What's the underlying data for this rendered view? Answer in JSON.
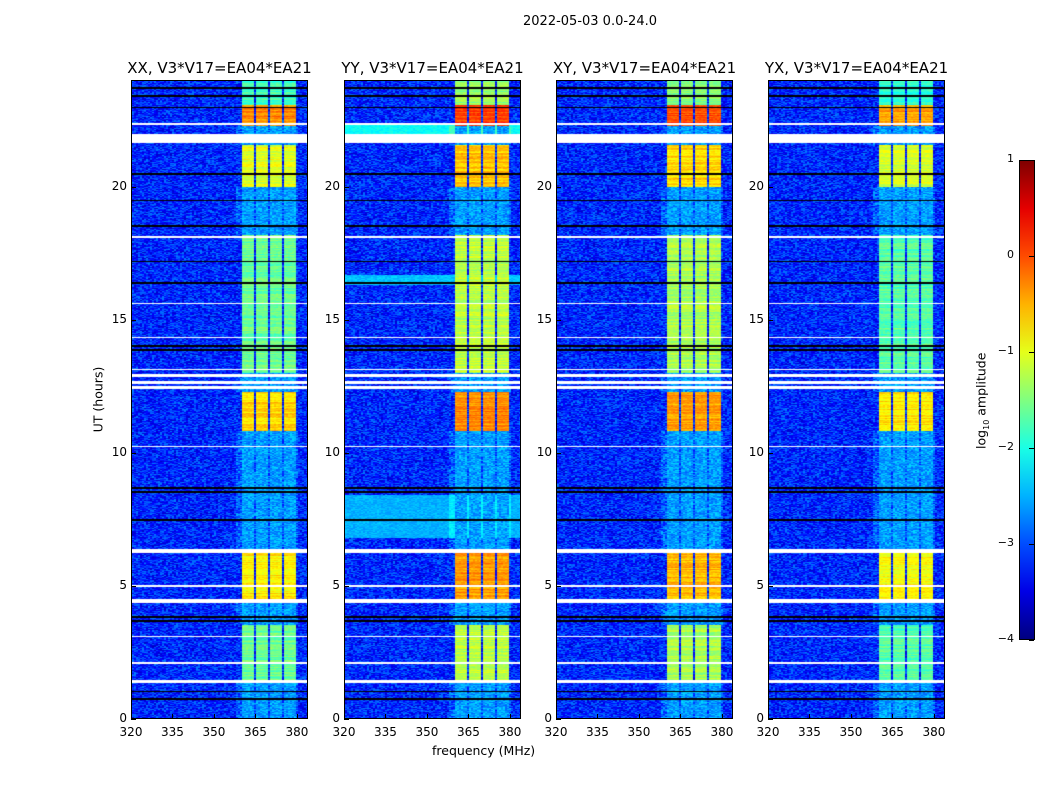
{
  "chart_data": {
    "type": "heatmap",
    "title": "2022-05-03 0.0-24.0",
    "xlabel": "frequency (MHz)",
    "ylabel": "UT (hours)",
    "xlim": [
      320,
      384
    ],
    "ylim": [
      0,
      24
    ],
    "x_ticks": [
      "320",
      "335",
      "350",
      "365",
      "380"
    ],
    "x_tick_values": [
      320,
      335,
      350,
      365,
      380
    ],
    "y_ticks": [
      "0",
      "5",
      "10",
      "15",
      "20"
    ],
    "y_tick_values": [
      0,
      5,
      10,
      15,
      20
    ],
    "colorbar": {
      "label_main": "log",
      "label_sub": "10",
      "label_rest": " amplitude",
      "range": [
        -4,
        1
      ],
      "ticks": [
        "1",
        "0",
        "−1",
        "−2",
        "−3",
        "−4"
      ],
      "tick_values": [
        1,
        0,
        -1,
        -2,
        -3,
        -4
      ],
      "colormap": "jet"
    },
    "background_level": -3.2,
    "subbands_mhz": [
      [
        360.5,
        364.6
      ],
      [
        365.4,
        369.8
      ],
      [
        370.5,
        374.8
      ],
      [
        375.5,
        380
      ]
    ],
    "active_intervals": [
      {
        "ut": [
          1.3,
          3.5
        ],
        "level": -1.6
      },
      {
        "ut": [
          4.5,
          6.2
        ],
        "level": -0.8
      },
      {
        "ut": [
          10.8,
          12.3
        ],
        "level": -0.7
      },
      {
        "ut": [
          13.0,
          18.2
        ],
        "level": -1.6
      },
      {
        "ut": [
          20.0,
          21.6
        ],
        "level": -1.0
      },
      {
        "ut": [
          22.3,
          23.1
        ],
        "level": -0.3
      },
      {
        "ut": [
          23.1,
          24.0
        ],
        "level": -1.8
      }
    ],
    "flagged_white_ut": [
      [
        1.3,
        1.45
      ],
      [
        4.35,
        4.48
      ],
      [
        6.2,
        6.38
      ],
      [
        12.4,
        12.5
      ],
      [
        12.6,
        12.7
      ],
      [
        12.85,
        12.95
      ],
      [
        13.1,
        13.15
      ],
      [
        21.65,
        22.0
      ],
      [
        22.35,
        22.42
      ],
      [
        18.1,
        18.15
      ],
      [
        15.6,
        15.65
      ],
      [
        14.3,
        14.35
      ],
      [
        10.2,
        10.25
      ],
      [
        4.95,
        5.0
      ],
      [
        2.05,
        2.1
      ],
      [
        3.05,
        3.1
      ]
    ],
    "black_rows_ut": [
      0.7,
      1.0,
      3.65,
      3.8,
      7.45,
      8.5,
      8.65,
      13.85,
      14.0,
      16.4,
      17.2,
      18.55,
      19.5,
      20.5,
      23.0,
      23.45,
      23.75
    ],
    "panels": [
      {
        "title": "XX, V3*V17=EA04*EA21",
        "gain": 0.0,
        "broadband": []
      },
      {
        "title": "YY, V3*V17=EA04*EA21",
        "gain": 0.4,
        "broadband": [
          {
            "ut": [
              21.9,
              22.35
            ],
            "level": -2.1
          },
          {
            "ut": [
              6.8,
              8.4
            ],
            "level": -2.5
          },
          {
            "ut": [
              16.3,
              16.7
            ],
            "level": -2.4
          }
        ]
      },
      {
        "title": "XY, V3*V17=EA04*EA21",
        "gain": 0.3,
        "broadband": []
      },
      {
        "title": "YX, V3*V17=EA04*EA21",
        "gain": -0.1,
        "broadband": []
      }
    ]
  }
}
